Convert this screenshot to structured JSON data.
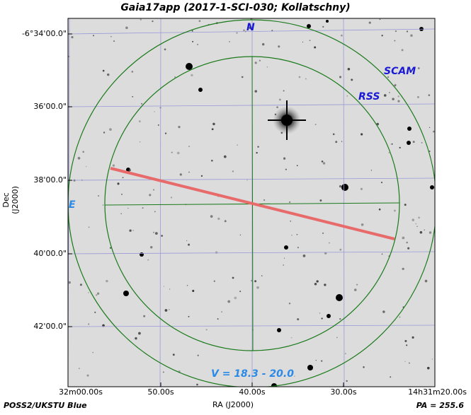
{
  "title": "Gaia17app (2017-1-SCI-030; Kollatschny)",
  "axes": {
    "ylabel": "Dec (J2000)",
    "xlabel": "RA (J2000)",
    "y_ticks": [
      "-6°34'00.0\"",
      "36'00.0\"",
      "38'00.0\"",
      "40'00.0\"",
      "42'00.0\""
    ],
    "x_ticks": [
      "32m00.00s",
      "50.00s",
      "40.00s",
      "30.00s",
      "14h31m20.00s"
    ]
  },
  "labels": {
    "north": "N",
    "east": "E",
    "scam": "SCAM",
    "rss": "RSS",
    "magnitude": "V = 18.3 - 20.0"
  },
  "footer": {
    "survey": "POSS2/UKSTU Blue",
    "pa": "PA = 255.6"
  },
  "colors": {
    "overlay_green": "#1a7a1a",
    "slit_red": "#e86a6a",
    "label_blue": "#1a1ad6",
    "label_lightblue": "#2a8ae6",
    "grid": "#9a9ad8"
  }
}
